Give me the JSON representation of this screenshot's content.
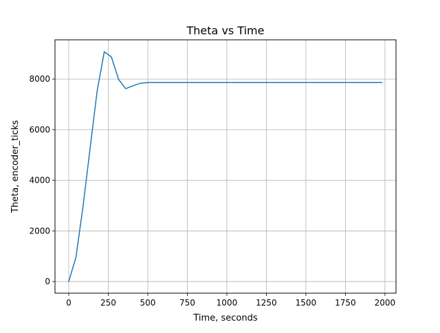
{
  "chart_data": {
    "type": "line",
    "title": "Theta vs Time",
    "xlabel": "Time, seconds",
    "ylabel": "Theta, encoder_ticks",
    "xlim": [
      -87,
      2070
    ],
    "ylim": [
      -460,
      9550
    ],
    "xticks": [
      0,
      250,
      500,
      750,
      1000,
      1250,
      1500,
      1750,
      2000
    ],
    "xtick_labels": [
      "0",
      "250",
      "500",
      "750",
      "1000",
      "1250",
      "1500",
      "1750",
      "2000"
    ],
    "yticks": [
      0,
      2000,
      4000,
      6000,
      8000
    ],
    "ytick_labels": [
      "0",
      "2000",
      "4000",
      "6000",
      "8000"
    ],
    "grid": true,
    "line_color": "#1f77b4",
    "series": [
      {
        "x": [
          0,
          45,
          90,
          135,
          180,
          225,
          270,
          315,
          360,
          405,
          450,
          500,
          550,
          600,
          700,
          800,
          900,
          1000,
          1200,
          1400,
          1600,
          1800,
          1980
        ],
        "y": [
          0,
          950,
          2950,
          5250,
          7550,
          9080,
          8870,
          7990,
          7620,
          7730,
          7830,
          7860,
          7860,
          7860,
          7860,
          7860,
          7860,
          7860,
          7860,
          7860,
          7860,
          7860,
          7860
        ]
      }
    ]
  }
}
